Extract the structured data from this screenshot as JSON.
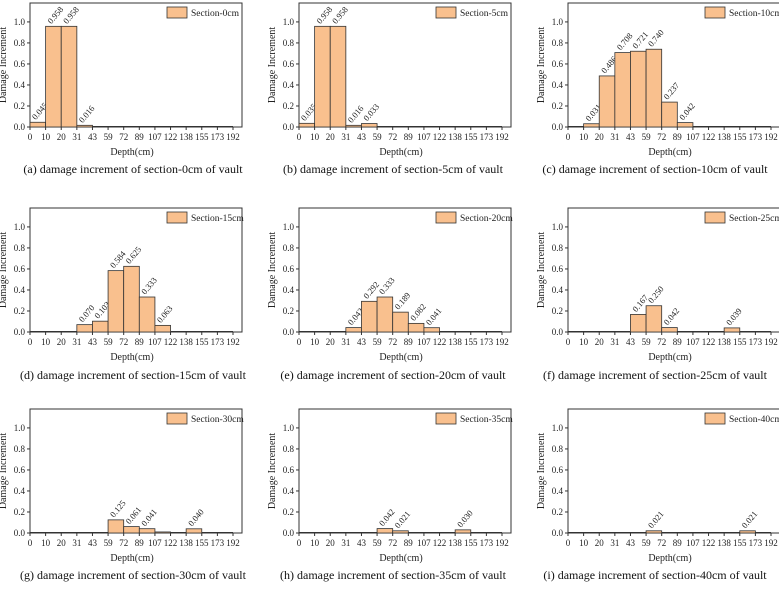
{
  "colors": {
    "bar_fill": "#f9c08e",
    "bar_stroke": "#333333",
    "axis": "#333333"
  },
  "chart_data": [
    {
      "type": "bar",
      "panel": "a",
      "caption": "(a) damage increment of section-0cm of vault",
      "legend": "Section-0cm",
      "legend_position": "top-right",
      "xlabel": "Depth(cm)",
      "ylabel": "Damage Increment",
      "ylim": [
        0,
        1.18
      ],
      "yticks": [
        "0.0",
        "0.2",
        "0.4",
        "0.6",
        "0.8",
        "1.0"
      ],
      "xticks": [
        "0",
        "10",
        "20",
        "31",
        "43",
        "59",
        "72",
        "89",
        "107",
        "122",
        "138",
        "155",
        "173",
        "192"
      ],
      "bars": [
        {
          "bin": 0,
          "value": 0.045,
          "label": "0.045"
        },
        {
          "bin": 1,
          "value": 0.958,
          "label": "0.958"
        },
        {
          "bin": 2,
          "value": 0.958,
          "label": "0.958"
        },
        {
          "bin": 3,
          "value": 0.016,
          "label": "0.016"
        }
      ]
    },
    {
      "type": "bar",
      "panel": "b",
      "caption": "(b) damage increment of section-5cm of vault",
      "legend": "Section-5cm",
      "legend_position": "top-right",
      "xlabel": "Depth(cm)",
      "ylabel": "Damage Increment",
      "ylim": [
        0,
        1.18
      ],
      "yticks": [
        "0.0",
        "0.2",
        "0.4",
        "0.6",
        "0.8",
        "1.0"
      ],
      "xticks": [
        "0",
        "10",
        "20",
        "31",
        "43",
        "59",
        "72",
        "89",
        "107",
        "122",
        "138",
        "155",
        "173",
        "192"
      ],
      "bars": [
        {
          "bin": 0,
          "value": 0.035,
          "label": "0.035"
        },
        {
          "bin": 1,
          "value": 0.958,
          "label": "0.958"
        },
        {
          "bin": 2,
          "value": 0.958,
          "label": "0.958"
        },
        {
          "bin": 3,
          "value": 0.016,
          "label": "0.016"
        },
        {
          "bin": 4,
          "value": 0.033,
          "label": "0.033"
        }
      ]
    },
    {
      "type": "bar",
      "panel": "c",
      "caption": "(c) damage increment of section-10cm of vault",
      "legend": "Section-10cm",
      "legend_position": "top-right",
      "xlabel": "Depth(cm)",
      "ylabel": "Damage Increment",
      "ylim": [
        0,
        1.18
      ],
      "yticks": [
        "0.0",
        "0.2",
        "0.4",
        "0.6",
        "0.8",
        "1.0"
      ],
      "xticks": [
        "0",
        "10",
        "20",
        "31",
        "43",
        "59",
        "72",
        "89",
        "107",
        "122",
        "138",
        "155",
        "173",
        "192"
      ],
      "bars": [
        {
          "bin": 1,
          "value": 0.031,
          "label": "0.031"
        },
        {
          "bin": 2,
          "value": 0.486,
          "label": "0.486"
        },
        {
          "bin": 3,
          "value": 0.708,
          "label": "0.708"
        },
        {
          "bin": 4,
          "value": 0.721,
          "label": "0.721"
        },
        {
          "bin": 5,
          "value": 0.74,
          "label": "0.740"
        },
        {
          "bin": 6,
          "value": 0.237,
          "label": "0.237"
        },
        {
          "bin": 7,
          "value": 0.042,
          "label": "0.042"
        }
      ]
    },
    {
      "type": "bar",
      "panel": "d",
      "caption": "(d) damage increment of section-15cm of vault",
      "legend": "Section-15cm",
      "legend_position": "top-right",
      "xlabel": "Depth(cm)",
      "ylabel": "Damage Increment",
      "ylim": [
        0,
        1.18
      ],
      "yticks": [
        "0.0",
        "0.2",
        "0.4",
        "0.6",
        "0.8",
        "1.0"
      ],
      "xticks": [
        "0",
        "10",
        "20",
        "31",
        "43",
        "59",
        "72",
        "89",
        "107",
        "122",
        "138",
        "155",
        "173",
        "192"
      ],
      "bars": [
        {
          "bin": 3,
          "value": 0.07,
          "label": "0.070"
        },
        {
          "bin": 4,
          "value": 0.103,
          "label": "0.103"
        },
        {
          "bin": 5,
          "value": 0.584,
          "label": "0.584"
        },
        {
          "bin": 6,
          "value": 0.625,
          "label": "0.625"
        },
        {
          "bin": 7,
          "value": 0.333,
          "label": "0.333"
        },
        {
          "bin": 8,
          "value": 0.063,
          "label": "0.063"
        }
      ]
    },
    {
      "type": "bar",
      "panel": "e",
      "caption": "(e) damage increment of section-20cm of vault",
      "legend": "Section-20cm",
      "legend_position": "top-right",
      "xlabel": "Depth(cm)",
      "ylabel": "Damage Increment",
      "ylim": [
        0,
        1.18
      ],
      "yticks": [
        "0.0",
        "0.2",
        "0.4",
        "0.6",
        "0.8",
        "1.0"
      ],
      "xticks": [
        "0",
        "10",
        "20",
        "31",
        "43",
        "59",
        "72",
        "89",
        "107",
        "122",
        "138",
        "155",
        "173",
        "192"
      ],
      "bars": [
        {
          "bin": 3,
          "value": 0.042,
          "label": "0.042"
        },
        {
          "bin": 4,
          "value": 0.292,
          "label": "0.292"
        },
        {
          "bin": 5,
          "value": 0.333,
          "label": "0.333"
        },
        {
          "bin": 6,
          "value": 0.189,
          "label": "0.189"
        },
        {
          "bin": 7,
          "value": 0.082,
          "label": "0.082"
        },
        {
          "bin": 8,
          "value": 0.041,
          "label": "0.041"
        }
      ]
    },
    {
      "type": "bar",
      "panel": "f",
      "caption": "(f) damage increment of section-25cm of vault",
      "legend": "Section-25cm",
      "legend_position": "top-right",
      "xlabel": "Depth(cm)",
      "ylabel": "Damage Increment",
      "ylim": [
        0,
        1.18
      ],
      "yticks": [
        "0.0",
        "0.2",
        "0.4",
        "0.6",
        "0.8",
        "1.0"
      ],
      "xticks": [
        "0",
        "10",
        "20",
        "31",
        "43",
        "59",
        "72",
        "89",
        "107",
        "122",
        "138",
        "155",
        "173",
        "192"
      ],
      "bars": [
        {
          "bin": 4,
          "value": 0.167,
          "label": "0.167"
        },
        {
          "bin": 5,
          "value": 0.25,
          "label": "0.250"
        },
        {
          "bin": 6,
          "value": 0.042,
          "label": "0.042"
        },
        {
          "bin": 10,
          "value": 0.039,
          "label": "0.039"
        }
      ]
    },
    {
      "type": "bar",
      "panel": "g",
      "caption": "(g) damage increment of section-30cm of vault",
      "legend": "Section-30cm",
      "legend_position": "top-right",
      "xlabel": "Depth(cm)",
      "ylabel": "Damage Increment",
      "ylim": [
        0,
        1.18
      ],
      "yticks": [
        "0.0",
        "0.2",
        "0.4",
        "0.6",
        "0.8",
        "1.0"
      ],
      "xticks": [
        "0",
        "10",
        "20",
        "31",
        "43",
        "59",
        "72",
        "89",
        "107",
        "122",
        "138",
        "155",
        "173",
        "192"
      ],
      "bars": [
        {
          "bin": 5,
          "value": 0.125,
          "label": "0.125"
        },
        {
          "bin": 6,
          "value": 0.061,
          "label": "0.061"
        },
        {
          "bin": 7,
          "value": 0.041,
          "label": "0.041"
        },
        {
          "bin": 8,
          "value": 0.01,
          "label": ""
        },
        {
          "bin": 10,
          "value": 0.04,
          "label": "0.040"
        }
      ]
    },
    {
      "type": "bar",
      "panel": "h",
      "caption": "(h) damage increment of section-35cm of vault",
      "legend": "Section-35cm",
      "legend_position": "top-right",
      "xlabel": "Depth(cm)",
      "ylabel": "Damage Increment",
      "ylim": [
        0,
        1.18
      ],
      "yticks": [
        "0.0",
        "0.2",
        "0.4",
        "0.6",
        "0.8",
        "1.0"
      ],
      "xticks": [
        "0",
        "10",
        "20",
        "31",
        "43",
        "59",
        "72",
        "89",
        "107",
        "122",
        "138",
        "155",
        "173",
        "192"
      ],
      "bars": [
        {
          "bin": 5,
          "value": 0.042,
          "label": "0.042"
        },
        {
          "bin": 6,
          "value": 0.021,
          "label": "0.021"
        },
        {
          "bin": 10,
          "value": 0.03,
          "label": "0.030"
        }
      ]
    },
    {
      "type": "bar",
      "panel": "i",
      "caption": "(i) damage increment of section-40cm of vault",
      "legend": "Section-40cm",
      "legend_position": "top-right",
      "xlabel": "Depth(cm)",
      "ylabel": "Damage Increment",
      "ylim": [
        0,
        1.18
      ],
      "yticks": [
        "0.0",
        "0.2",
        "0.4",
        "0.6",
        "0.8",
        "1.0"
      ],
      "xticks": [
        "0",
        "10",
        "20",
        "31",
        "43",
        "59",
        "72",
        "89",
        "107",
        "122",
        "138",
        "155",
        "173",
        "192"
      ],
      "bars": [
        {
          "bin": 5,
          "value": 0.021,
          "label": "0.021"
        },
        {
          "bin": 11,
          "value": 0.021,
          "label": "0.021"
        }
      ]
    }
  ]
}
